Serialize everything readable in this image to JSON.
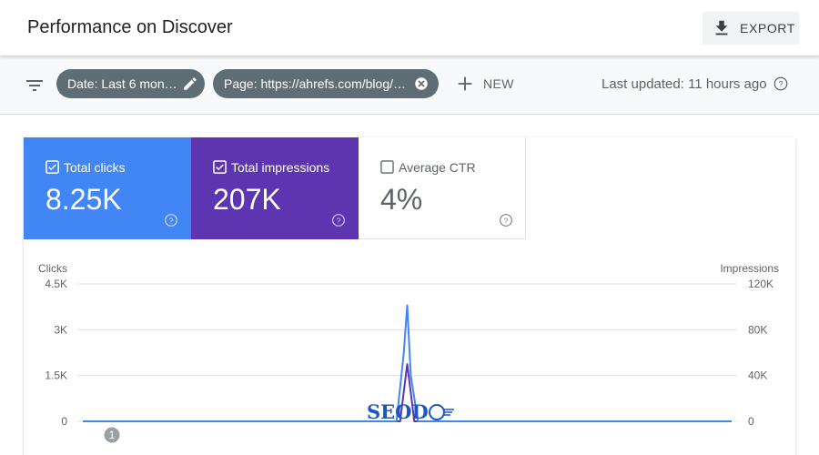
{
  "header": {
    "title": "Performance on Discover",
    "export_label": "EXPORT"
  },
  "filters": {
    "chips": [
      {
        "label": "Date: Last 6 months",
        "icon": "pencil-icon"
      },
      {
        "label": "Page: https://ahrefs.com/blog/h…",
        "icon": "close-circle-icon"
      }
    ],
    "new_label": "NEW",
    "last_updated": "Last updated: 11 hours ago"
  },
  "metrics": [
    {
      "label": "Total clicks",
      "value": "8.25K",
      "checked": true,
      "color": "#4285f4"
    },
    {
      "label": "Total impressions",
      "value": "207K",
      "checked": true,
      "color": "#5e35b1"
    },
    {
      "label": "Average CTR",
      "value": "4%",
      "checked": false,
      "color": "#ffffff"
    }
  ],
  "chart_data": {
    "type": "line",
    "left_axis": {
      "label": "Clicks",
      "ticks": [
        "4.5K",
        "3K",
        "1.5K",
        "0"
      ],
      "range": [
        0,
        4500
      ]
    },
    "right_axis": {
      "label": "Impressions",
      "ticks": [
        "120K",
        "80K",
        "40K",
        "0"
      ],
      "range": [
        0,
        120000
      ]
    },
    "x_index_range": [
      0,
      182
    ],
    "spike_index": 91,
    "series": [
      {
        "name": "Total clicks",
        "axis": "left",
        "color": "#4285f4",
        "points": [
          [
            0,
            0
          ],
          [
            88,
            0
          ],
          [
            90,
            2200
          ],
          [
            91,
            3800
          ],
          [
            92,
            1500
          ],
          [
            94,
            0
          ],
          [
            182,
            0
          ]
        ]
      },
      {
        "name": "Total impressions",
        "axis": "right",
        "color": "#5e35b1",
        "points": [
          [
            0,
            0
          ],
          [
            89,
            0
          ],
          [
            91,
            50000
          ],
          [
            93,
            0
          ],
          [
            182,
            0
          ]
        ]
      }
    ],
    "annotation_badge": "1"
  },
  "watermark": "SEOD"
}
